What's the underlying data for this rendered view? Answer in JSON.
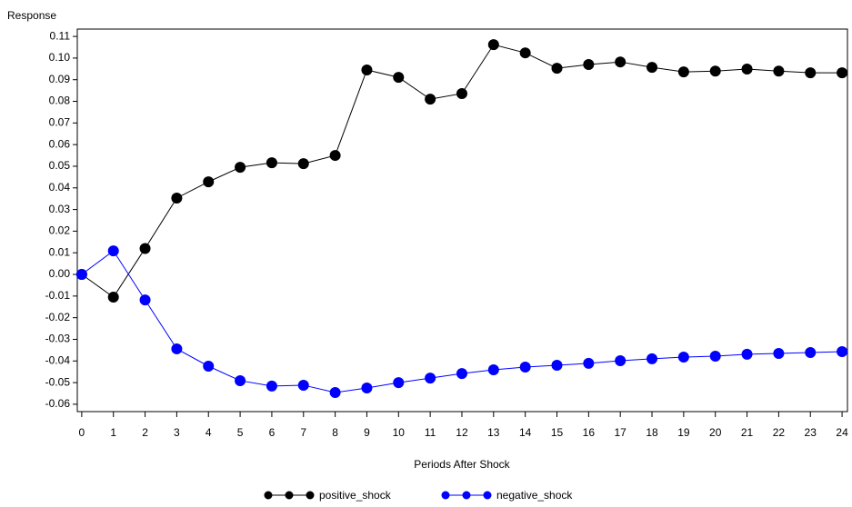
{
  "chart_data": {
    "type": "line",
    "ylabel": "Response",
    "xlabel": "Periods After Shock",
    "x": [
      0,
      1,
      2,
      3,
      4,
      5,
      6,
      7,
      8,
      9,
      10,
      11,
      12,
      13,
      14,
      15,
      16,
      17,
      18,
      19,
      20,
      21,
      22,
      23,
      24
    ],
    "series": [
      {
        "name": "positive_shock",
        "color": "#000000",
        "values": [
          0.0,
          -0.0105,
          0.012,
          0.0353,
          0.0428,
          0.0495,
          0.0516,
          0.0512,
          0.055,
          0.0945,
          0.0911,
          0.081,
          0.0836,
          0.1062,
          0.1024,
          0.0953,
          0.097,
          0.0982,
          0.0957,
          0.0936,
          0.094,
          0.0949,
          0.094,
          0.0932,
          0.0932
        ]
      },
      {
        "name": "negative_shock",
        "color": "#0000ff",
        "values": [
          0.0,
          0.0109,
          -0.0118,
          -0.0344,
          -0.0424,
          -0.0491,
          -0.0516,
          -0.0512,
          -0.0546,
          -0.0525,
          -0.05,
          -0.0479,
          -0.0458,
          -0.0441,
          -0.0428,
          -0.042,
          -0.0411,
          -0.0399,
          -0.039,
          -0.0382,
          -0.0378,
          -0.0369,
          -0.0365,
          -0.0361,
          -0.0357
        ]
      }
    ],
    "xlim": [
      -0.14,
      24.17
    ],
    "xticks": [
      0,
      1,
      2,
      3,
      4,
      5,
      6,
      7,
      8,
      9,
      10,
      11,
      12,
      13,
      14,
      15,
      16,
      17,
      18,
      19,
      20,
      21,
      22,
      23,
      24
    ],
    "ylim": [
      -0.0634,
      0.1134
    ],
    "yticks": [
      0.11,
      {
        "value": 0.1,
        "label": "0.10"
      },
      0.09,
      0.08,
      0.07,
      0.06,
      0.05,
      0.04,
      0.03,
      0.02,
      0.01,
      {
        "value": 0,
        "label": "0.00"
      },
      -0.01,
      -0.02,
      -0.03,
      -0.04,
      -0.05,
      -0.06
    ],
    "grid": false,
    "legend": "bottom"
  }
}
